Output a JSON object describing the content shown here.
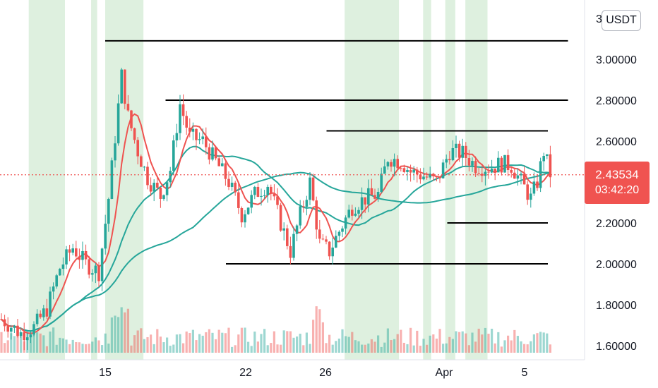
{
  "chart_data": {
    "type": "candlestick",
    "currency": "USDT",
    "current_price": "2.43534",
    "countdown": "03:42:20",
    "ylim": [
      1.55,
      3.22
    ],
    "y_ticks": [
      "1.60000",
      "1.80000",
      "2.00000",
      "2.20000",
      "2.40000",
      "2.60000",
      "2.80000",
      "3.00000",
      "3"
    ],
    "x_ticks": [
      "15",
      "22",
      "26",
      "Apr",
      "5"
    ],
    "horizontal_levels": [
      {
        "price": 3.09,
        "from": "Mar 15",
        "to": "Apr 7"
      },
      {
        "price": 2.8,
        "from": "Mar 18",
        "to": "Apr 7"
      },
      {
        "price": 2.65,
        "from": "Mar 26",
        "to": "Apr 6"
      },
      {
        "price": 2.2,
        "from": "Apr 1",
        "to": "Apr 6"
      },
      {
        "price": 2.0,
        "from": "Mar 21",
        "to": "Apr 6"
      }
    ],
    "colors": {
      "up": "#26a69a",
      "down": "#ef5350",
      "band": "#c8e6c9",
      "ma_fast": "#ef5350",
      "ma_mid": "#26a69a",
      "ma_slow": "#26a69a",
      "level_line": "#000000",
      "price_line": "#ef5350"
    }
  }
}
